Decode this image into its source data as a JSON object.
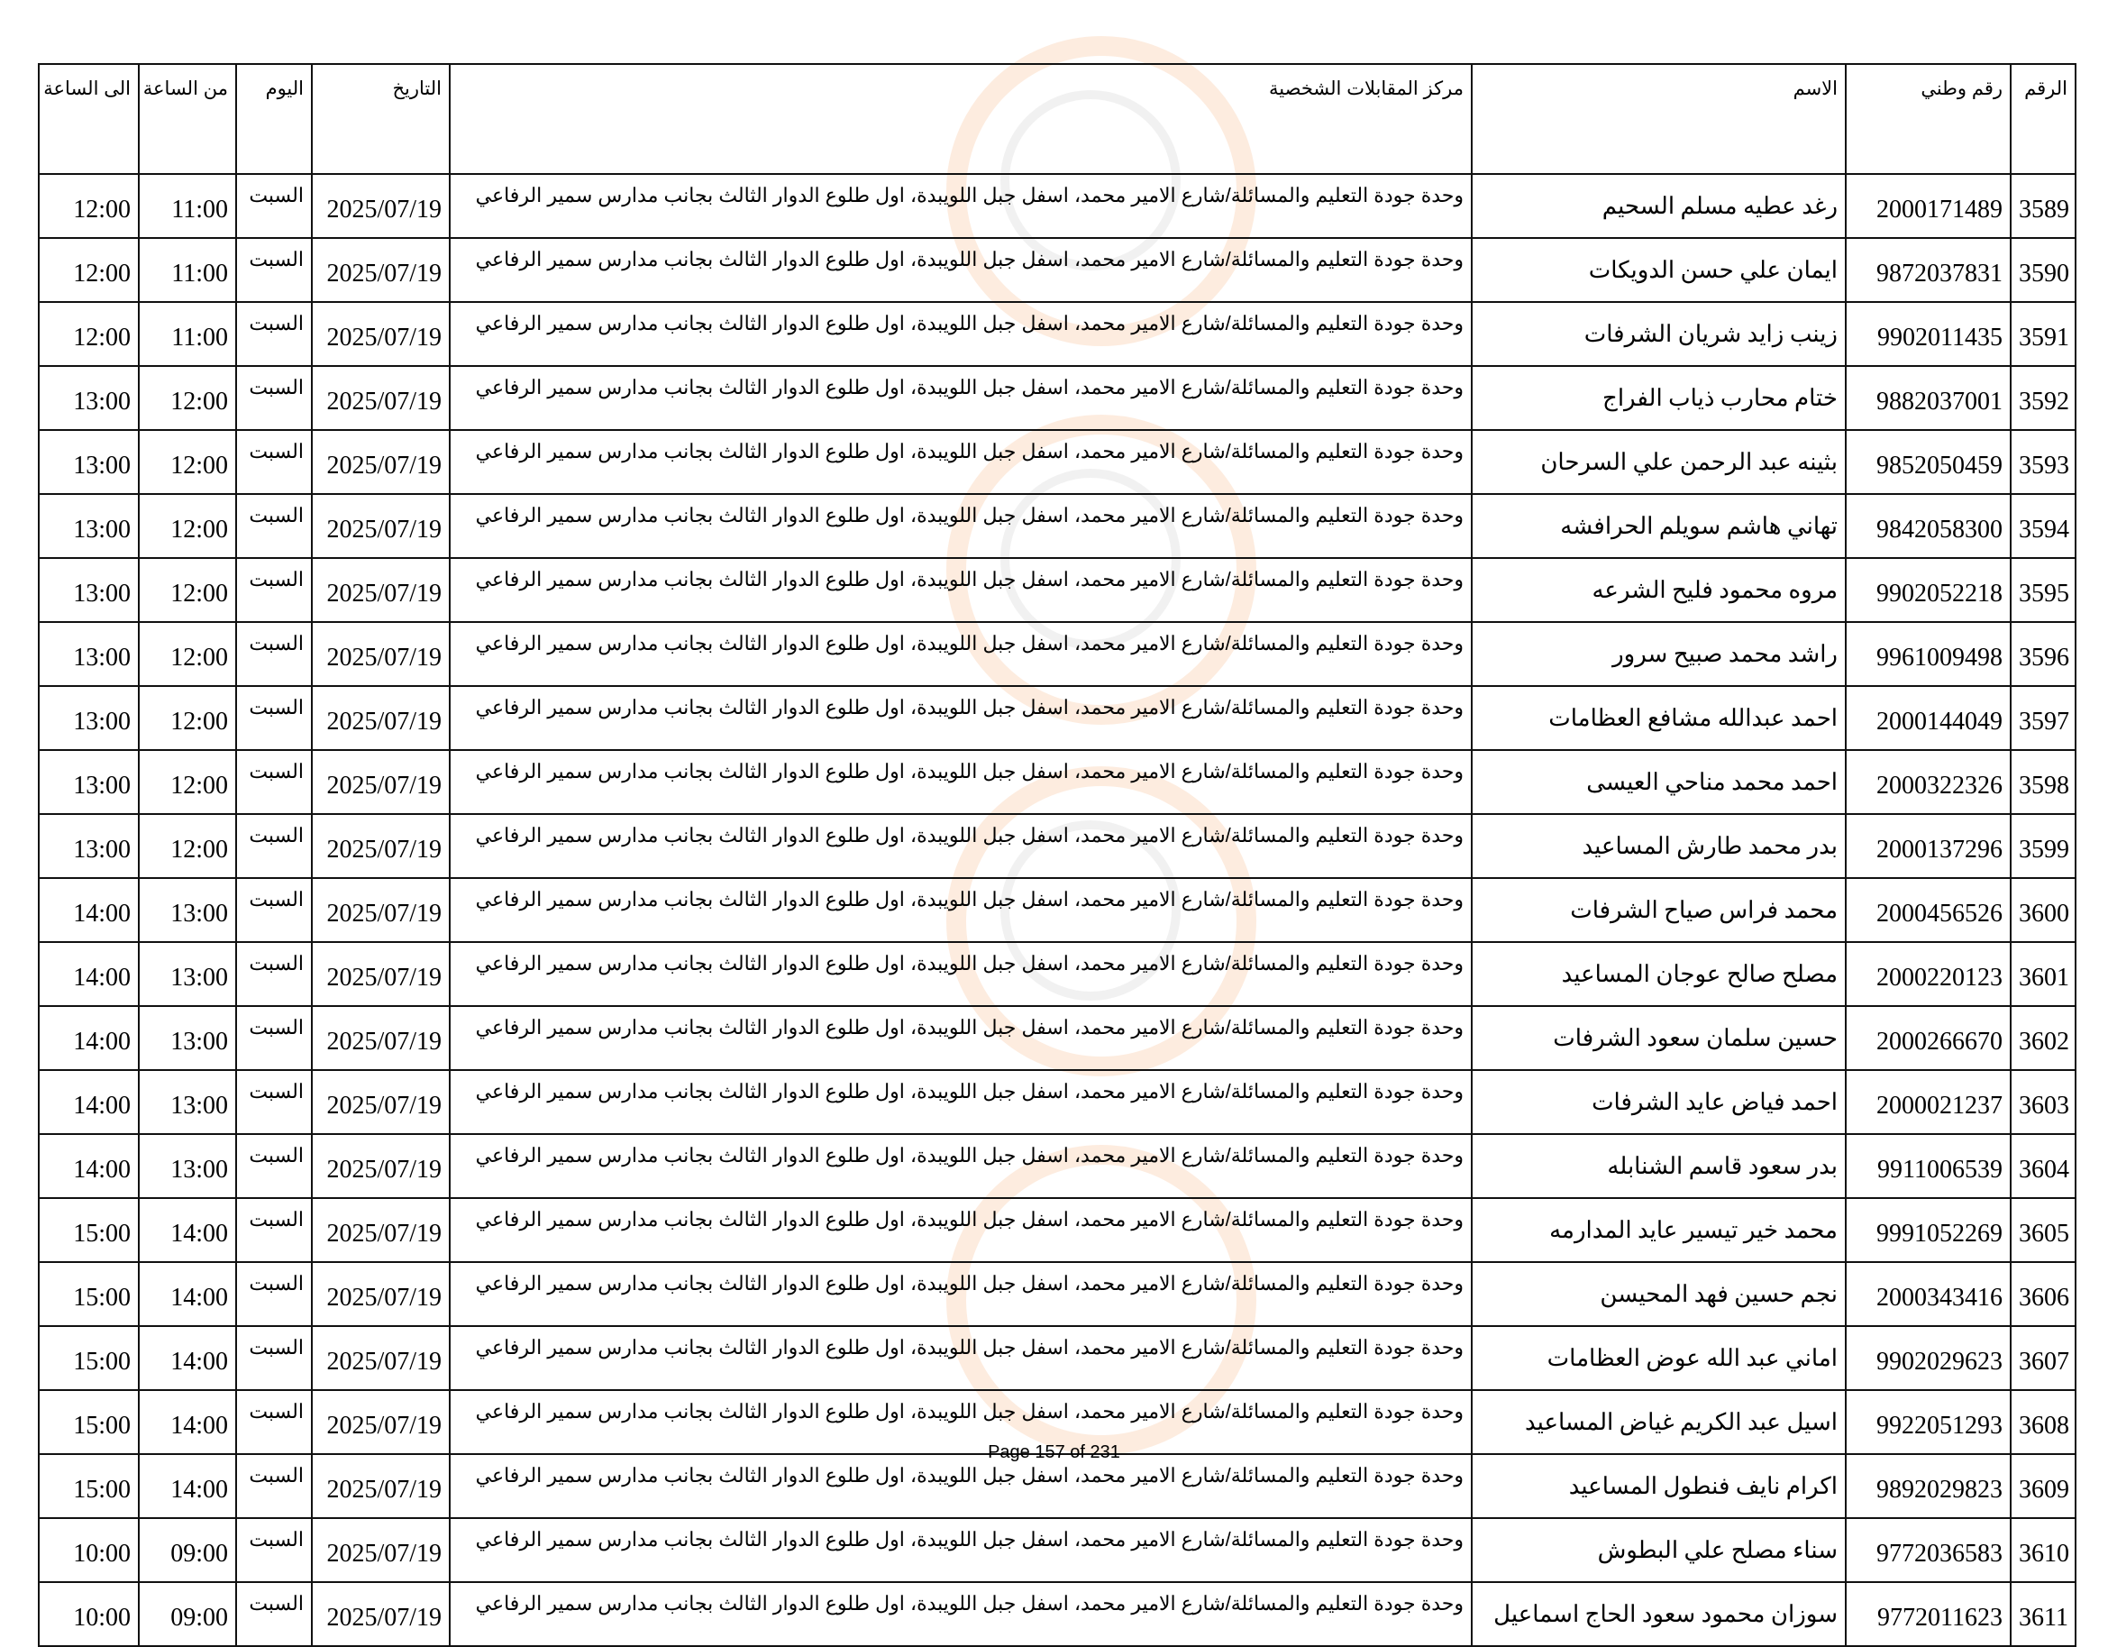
{
  "headers": {
    "no": "الرقم",
    "national_id": "رقم وطني",
    "name": "الاسم",
    "center": "مركز المقابلات الشخصية",
    "date": "التاريخ",
    "day": "اليوم",
    "from": "من الساعة",
    "to": "الى الساعة"
  },
  "rows": [
    {
      "no": "3589",
      "id": "2000171489",
      "name": "رغد عطيه مسلم السحيم",
      "center": "وحدة جودة التعليم والمسائلة/شارع الامير محمد، اسفل جبل اللويبدة، اول طلوع الدوار الثالث بجانب مدارس سمير الرفاعي",
      "date": "2025/07/19",
      "day": "السبت",
      "from": "11:00",
      "to": "12:00"
    },
    {
      "no": "3590",
      "id": "9872037831",
      "name": "ايمان علي حسن الدويكات",
      "center": "وحدة جودة التعليم والمسائلة/شارع الامير محمد، اسفل جبل اللويبدة، اول طلوع الدوار الثالث بجانب مدارس سمير الرفاعي",
      "date": "2025/07/19",
      "day": "السبت",
      "from": "11:00",
      "to": "12:00"
    },
    {
      "no": "3591",
      "id": "9902011435",
      "name": "زينب زايد شريان الشرفات",
      "center": "وحدة جودة التعليم والمسائلة/شارع الامير محمد، اسفل جبل اللويبدة، اول طلوع الدوار الثالث بجانب مدارس سمير الرفاعي",
      "date": "2025/07/19",
      "day": "السبت",
      "from": "11:00",
      "to": "12:00"
    },
    {
      "no": "3592",
      "id": "9882037001",
      "name": "ختام محارب ذياب الفراج",
      "center": "وحدة جودة التعليم والمسائلة/شارع الامير محمد، اسفل جبل اللويبدة، اول طلوع الدوار الثالث بجانب مدارس سمير الرفاعي",
      "date": "2025/07/19",
      "day": "السبت",
      "from": "12:00",
      "to": "13:00"
    },
    {
      "no": "3593",
      "id": "9852050459",
      "name": "بثينه عبد الرحمن علي السرحان",
      "center": "وحدة جودة التعليم والمسائلة/شارع الامير محمد، اسفل جبل اللويبدة، اول طلوع الدوار الثالث بجانب مدارس سمير الرفاعي",
      "date": "2025/07/19",
      "day": "السبت",
      "from": "12:00",
      "to": "13:00"
    },
    {
      "no": "3594",
      "id": "9842058300",
      "name": "تهاني هاشم سويلم الحرافشه",
      "center": "وحدة جودة التعليم والمسائلة/شارع الامير محمد، اسفل جبل اللويبدة، اول طلوع الدوار الثالث بجانب مدارس سمير الرفاعي",
      "date": "2025/07/19",
      "day": "السبت",
      "from": "12:00",
      "to": "13:00"
    },
    {
      "no": "3595",
      "id": "9902052218",
      "name": "مروه محمود فليح الشرعه",
      "center": "وحدة جودة التعليم والمسائلة/شارع الامير محمد، اسفل جبل اللويبدة، اول طلوع الدوار الثالث بجانب مدارس سمير الرفاعي",
      "date": "2025/07/19",
      "day": "السبت",
      "from": "12:00",
      "to": "13:00"
    },
    {
      "no": "3596",
      "id": "9961009498",
      "name": "راشد محمد صبيح سرور",
      "center": "وحدة جودة التعليم والمسائلة/شارع الامير محمد، اسفل جبل اللويبدة، اول طلوع الدوار الثالث بجانب مدارس سمير الرفاعي",
      "date": "2025/07/19",
      "day": "السبت",
      "from": "12:00",
      "to": "13:00"
    },
    {
      "no": "3597",
      "id": "2000144049",
      "name": "احمد عبدالله مشافع العظامات",
      "center": "وحدة جودة التعليم والمسائلة/شارع الامير محمد، اسفل جبل اللويبدة، اول طلوع الدوار الثالث بجانب مدارس سمير الرفاعي",
      "date": "2025/07/19",
      "day": "السبت",
      "from": "12:00",
      "to": "13:00"
    },
    {
      "no": "3598",
      "id": "2000322326",
      "name": "احمد محمد مناحي العيسى",
      "center": "وحدة جودة التعليم والمسائلة/شارع الامير محمد، اسفل جبل اللويبدة، اول طلوع الدوار الثالث بجانب مدارس سمير الرفاعي",
      "date": "2025/07/19",
      "day": "السبت",
      "from": "12:00",
      "to": "13:00"
    },
    {
      "no": "3599",
      "id": "2000137296",
      "name": "بدر محمد طارش المساعيد",
      "center": "وحدة جودة التعليم والمسائلة/شارع الامير محمد، اسفل جبل اللويبدة، اول طلوع الدوار الثالث بجانب مدارس سمير الرفاعي",
      "date": "2025/07/19",
      "day": "السبت",
      "from": "12:00",
      "to": "13:00"
    },
    {
      "no": "3600",
      "id": "2000456526",
      "name": "محمد فراس صياح الشرفات",
      "center": "وحدة جودة التعليم والمسائلة/شارع الامير محمد، اسفل جبل اللويبدة، اول طلوع الدوار الثالث بجانب مدارس سمير الرفاعي",
      "date": "2025/07/19",
      "day": "السبت",
      "from": "13:00",
      "to": "14:00"
    },
    {
      "no": "3601",
      "id": "2000220123",
      "name": "مصلح صالح عوجان المساعيد",
      "center": "وحدة جودة التعليم والمسائلة/شارع الامير محمد، اسفل جبل اللويبدة، اول طلوع الدوار الثالث بجانب مدارس سمير الرفاعي",
      "date": "2025/07/19",
      "day": "السبت",
      "from": "13:00",
      "to": "14:00"
    },
    {
      "no": "3602",
      "id": "2000266670",
      "name": "حسين سلمان سعود الشرفات",
      "center": "وحدة جودة التعليم والمسائلة/شارع الامير محمد، اسفل جبل اللويبدة، اول طلوع الدوار الثالث بجانب مدارس سمير الرفاعي",
      "date": "2025/07/19",
      "day": "السبت",
      "from": "13:00",
      "to": "14:00"
    },
    {
      "no": "3603",
      "id": "2000021237",
      "name": "احمد فياض عايد الشرفات",
      "center": "وحدة جودة التعليم والمسائلة/شارع الامير محمد، اسفل جبل اللويبدة، اول طلوع الدوار الثالث بجانب مدارس سمير الرفاعي",
      "date": "2025/07/19",
      "day": "السبت",
      "from": "13:00",
      "to": "14:00"
    },
    {
      "no": "3604",
      "id": "9911006539",
      "name": "بدر سعود قاسم الشنابله",
      "center": "وحدة جودة التعليم والمسائلة/شارع الامير محمد، اسفل جبل اللويبدة، اول طلوع الدوار الثالث بجانب مدارس سمير الرفاعي",
      "date": "2025/07/19",
      "day": "السبت",
      "from": "13:00",
      "to": "14:00"
    },
    {
      "no": "3605",
      "id": "9991052269",
      "name": "محمد خير تيسير عايد المدارمه",
      "center": "وحدة جودة التعليم والمسائلة/شارع الامير محمد، اسفل جبل اللويبدة، اول طلوع الدوار الثالث بجانب مدارس سمير الرفاعي",
      "date": "2025/07/19",
      "day": "السبت",
      "from": "14:00",
      "to": "15:00"
    },
    {
      "no": "3606",
      "id": "2000343416",
      "name": "نجم حسين فهد المحيسن",
      "center": "وحدة جودة التعليم والمسائلة/شارع الامير محمد، اسفل جبل اللويبدة، اول طلوع الدوار الثالث بجانب مدارس سمير الرفاعي",
      "date": "2025/07/19",
      "day": "السبت",
      "from": "14:00",
      "to": "15:00"
    },
    {
      "no": "3607",
      "id": "9902029623",
      "name": "اماني عبد الله عوض العظامات",
      "center": "وحدة جودة التعليم والمسائلة/شارع الامير محمد، اسفل جبل اللويبدة، اول طلوع الدوار الثالث بجانب مدارس سمير الرفاعي",
      "date": "2025/07/19",
      "day": "السبت",
      "from": "14:00",
      "to": "15:00"
    },
    {
      "no": "3608",
      "id": "9922051293",
      "name": "اسيل عبد الكريم غياض المساعيد",
      "center": "وحدة جودة التعليم والمسائلة/شارع الامير محمد، اسفل جبل اللويبدة، اول طلوع الدوار الثالث بجانب مدارس سمير الرفاعي",
      "date": "2025/07/19",
      "day": "السبت",
      "from": "14:00",
      "to": "15:00"
    },
    {
      "no": "3609",
      "id": "9892029823",
      "name": "اكرام نايف فنطول المساعيد",
      "center": "وحدة جودة التعليم والمسائلة/شارع الامير محمد، اسفل جبل اللويبدة، اول طلوع الدوار الثالث بجانب مدارس سمير الرفاعي",
      "date": "2025/07/19",
      "day": "السبت",
      "from": "14:00",
      "to": "15:00"
    },
    {
      "no": "3610",
      "id": "9772036583",
      "name": "سناء مصلح علي البطوش",
      "center": "وحدة جودة التعليم والمسائلة/شارع الامير محمد، اسفل جبل اللويبدة، اول طلوع الدوار الثالث بجانب مدارس سمير الرفاعي",
      "date": "2025/07/19",
      "day": "السبت",
      "from": "09:00",
      "to": "10:00"
    },
    {
      "no": "3611",
      "id": "9772011623",
      "name": "سوزان محمود سعود الحاج اسماعيل",
      "center": "وحدة جودة التعليم والمسائلة/شارع الامير محمد، اسفل جبل اللويبدة، اول طلوع الدوار الثالث بجانب مدارس سمير الرفاعي",
      "date": "2025/07/19",
      "day": "السبت",
      "from": "09:00",
      "to": "10:00"
    }
  ],
  "footer": "Page 157 of 231",
  "watermark_color": "#f5aa6e"
}
